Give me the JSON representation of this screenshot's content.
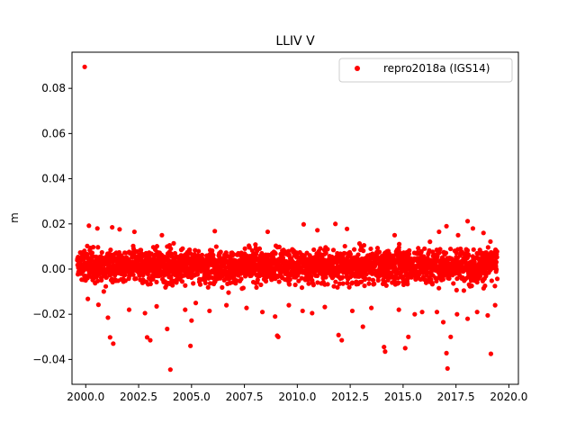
{
  "chart_data": {
    "type": "scatter",
    "title": "LLIV V",
    "xlabel": "",
    "ylabel": "m",
    "xlim": [
      1999.35,
      2020.45
    ],
    "ylim": [
      -0.051,
      0.096
    ],
    "xticks": [
      2000.0,
      2002.5,
      2005.0,
      2007.5,
      2010.0,
      2012.5,
      2015.0,
      2017.5,
      2020.0
    ],
    "xtick_labels": [
      "2000.0",
      "2002.5",
      "2005.0",
      "2007.5",
      "2010.0",
      "2012.5",
      "2015.0",
      "2017.5",
      "2020.0"
    ],
    "yticks": [
      -0.04,
      -0.02,
      0.0,
      0.02,
      0.04,
      0.06,
      0.08
    ],
    "ytick_labels": [
      "−0.04",
      "−0.02",
      "0.00",
      "0.02",
      "0.04",
      "0.06",
      "0.08"
    ],
    "grid": false,
    "legend_position": "top-right",
    "series": [
      {
        "name": "repro2018a (IGS14)",
        "color": "#ff0000",
        "marker": "circle",
        "points": [
          [
            1999.95,
            0.0895
          ],
          [
            2000.15,
            0.0192
          ],
          [
            2000.55,
            0.018
          ],
          [
            2001.25,
            0.0185
          ],
          [
            2001.6,
            0.0176
          ],
          [
            2002.3,
            0.0165
          ],
          [
            2003.6,
            0.015
          ],
          [
            2006.1,
            0.0168
          ],
          [
            2008.6,
            0.0165
          ],
          [
            2010.3,
            0.0198
          ],
          [
            2010.95,
            0.0172
          ],
          [
            2011.8,
            0.02
          ],
          [
            2012.35,
            0.0178
          ],
          [
            2014.6,
            0.015
          ],
          [
            2016.7,
            0.0165
          ],
          [
            2017.05,
            0.019
          ],
          [
            2017.6,
            0.015
          ],
          [
            2018.05,
            0.0212
          ],
          [
            2018.3,
            0.018
          ],
          [
            2018.8,
            0.016
          ],
          [
            2000.1,
            -0.0132
          ],
          [
            2000.6,
            -0.0158
          ],
          [
            2001.05,
            -0.0215
          ],
          [
            2001.15,
            -0.0302
          ],
          [
            2001.3,
            -0.033
          ],
          [
            2002.05,
            -0.018
          ],
          [
            2002.8,
            -0.0195
          ],
          [
            2002.9,
            -0.0302
          ],
          [
            2003.05,
            -0.0315
          ],
          [
            2003.35,
            -0.0165
          ],
          [
            2003.85,
            -0.0265
          ],
          [
            2004.0,
            -0.0445
          ],
          [
            2004.7,
            -0.018
          ],
          [
            2004.95,
            -0.034
          ],
          [
            2005.0,
            -0.0228
          ],
          [
            2005.2,
            -0.015
          ],
          [
            2005.85,
            -0.0185
          ],
          [
            2006.65,
            -0.016
          ],
          [
            2007.6,
            -0.0172
          ],
          [
            2008.35,
            -0.019
          ],
          [
            2008.95,
            -0.021
          ],
          [
            2009.05,
            -0.0295
          ],
          [
            2009.1,
            -0.03
          ],
          [
            2009.6,
            -0.016
          ],
          [
            2010.25,
            -0.0185
          ],
          [
            2010.7,
            -0.0195
          ],
          [
            2011.3,
            -0.0168
          ],
          [
            2011.95,
            -0.0292
          ],
          [
            2012.1,
            -0.0315
          ],
          [
            2012.6,
            -0.0185
          ],
          [
            2013.1,
            -0.0255
          ],
          [
            2013.5,
            -0.0172
          ],
          [
            2014.1,
            -0.0345
          ],
          [
            2014.15,
            -0.0365
          ],
          [
            2014.8,
            -0.018
          ],
          [
            2015.1,
            -0.035
          ],
          [
            2015.25,
            -0.03
          ],
          [
            2015.55,
            -0.02
          ],
          [
            2015.9,
            -0.019
          ],
          [
            2016.6,
            -0.019
          ],
          [
            2016.9,
            -0.0235
          ],
          [
            2017.05,
            -0.0372
          ],
          [
            2017.1,
            -0.044
          ],
          [
            2017.25,
            -0.03
          ],
          [
            2017.55,
            -0.02
          ],
          [
            2018.05,
            -0.022
          ],
          [
            2018.5,
            -0.019
          ],
          [
            2019.0,
            -0.0205
          ],
          [
            2019.15,
            -0.0375
          ],
          [
            2019.35,
            -0.016
          ]
        ],
        "dense_band": {
          "x_range": [
            1999.6,
            2019.45
          ],
          "center": 0.0015,
          "spread": 0.0085
        }
      }
    ]
  }
}
